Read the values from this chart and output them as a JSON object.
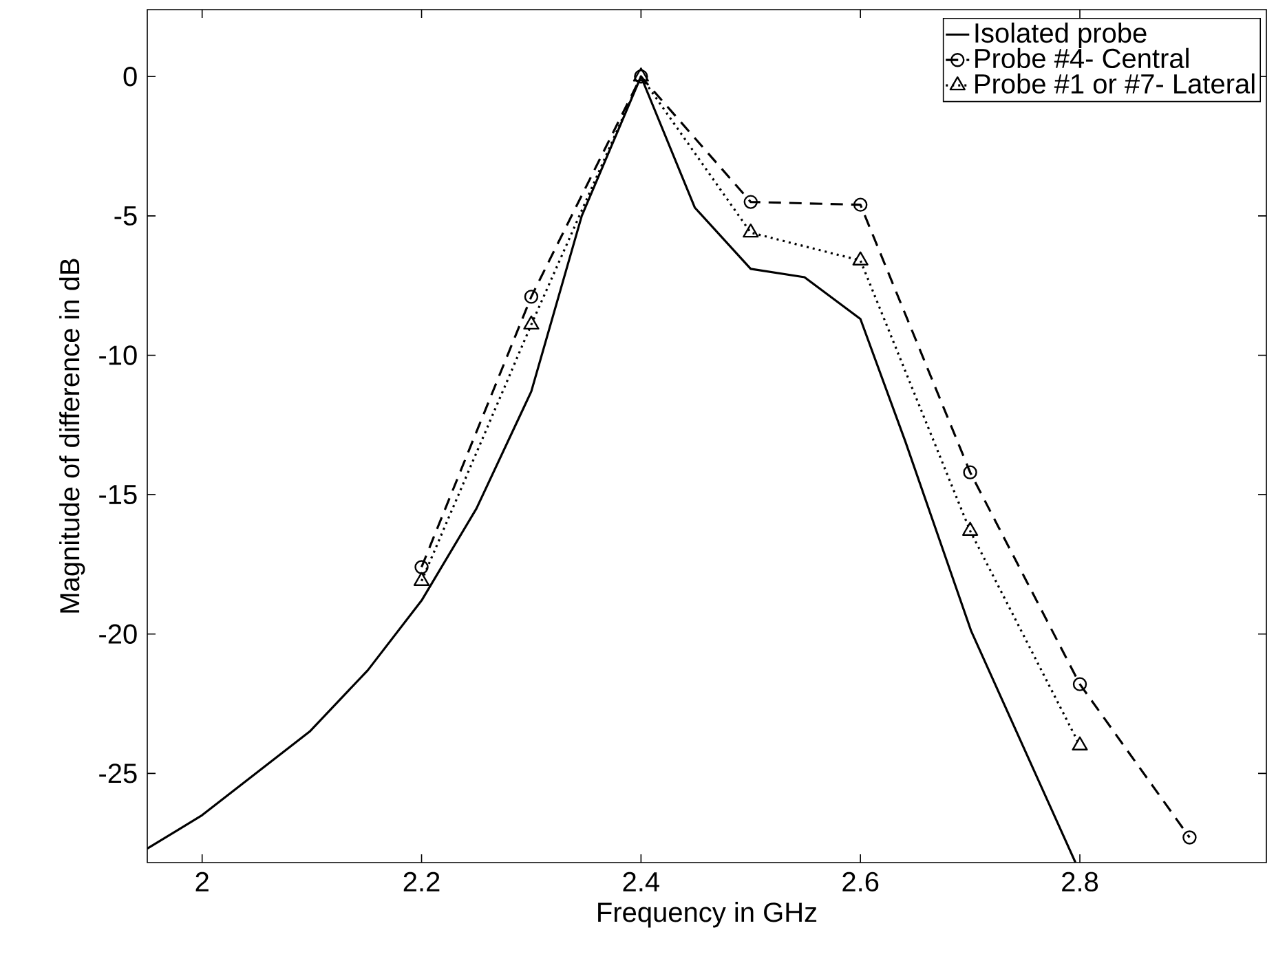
{
  "chart_data": {
    "type": "line",
    "xlabel": "Frequency in GHz",
    "ylabel": "Magnitude of difference in dB",
    "xlim": [
      1.95,
      2.97
    ],
    "ylim": [
      -28.2,
      2.4
    ],
    "xticks": [
      2,
      2.2,
      2.4,
      2.6,
      2.8
    ],
    "yticks": [
      -25,
      -20,
      -15,
      -10,
      -5,
      0
    ],
    "grid": false,
    "legend": "top right",
    "series": [
      {
        "name": "Isolated probe",
        "color": "#000000",
        "marker": "none",
        "line_style": "solid",
        "x": [
          1.95,
          2.0,
          2.098,
          2.151,
          2.2,
          2.25,
          2.3,
          2.346,
          2.4,
          2.449,
          2.5,
          2.549,
          2.6,
          2.641,
          2.701,
          2.796
        ],
        "values": [
          -27.7,
          -26.5,
          -23.5,
          -21.3,
          -18.8,
          -15.5,
          -11.3,
          -5.0,
          0,
          -4.7,
          -6.9,
          -7.2,
          -8.7,
          -13.1,
          -19.9,
          -28.2
        ]
      },
      {
        "name": "Probe #4- Central",
        "color": "#000000",
        "marker": "circle",
        "line_style": "dashed",
        "x": [
          2.2,
          2.3,
          2.4,
          2.5,
          2.6,
          2.7,
          2.8,
          2.9
        ],
        "values": [
          -17.6,
          -7.9,
          0,
          -4.5,
          -4.6,
          -14.2,
          -21.8,
          -27.3
        ]
      },
      {
        "name": "Probe #1 or #7- Lateral",
        "color": "#000000",
        "marker": "triangle",
        "line_style": "dotted",
        "x": [
          2.2,
          2.3,
          2.4,
          2.5,
          2.6,
          2.7,
          2.8
        ],
        "values": [
          -18.1,
          -8.9,
          0,
          -5.6,
          -6.6,
          -16.3,
          -24.0
        ]
      }
    ]
  }
}
